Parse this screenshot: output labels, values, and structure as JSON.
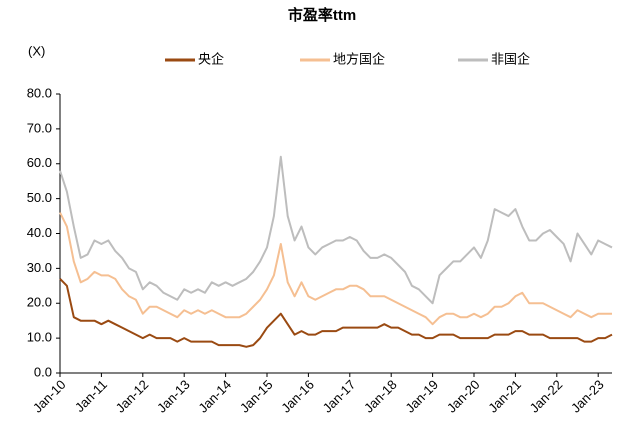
{
  "chart_data": {
    "type": "line",
    "title": "市盈率ttm",
    "y_label": "(X)",
    "categories": [
      "Jan-10",
      null,
      null,
      null,
      null,
      null,
      "Jan-11",
      null,
      null,
      null,
      null,
      null,
      "Jan-12",
      null,
      null,
      null,
      null,
      null,
      "Jan-13",
      null,
      null,
      null,
      null,
      null,
      "Jan-14",
      null,
      null,
      null,
      null,
      null,
      "Jan-15",
      null,
      null,
      null,
      null,
      null,
      "Jan-16",
      null,
      null,
      null,
      null,
      null,
      "Jan-17",
      null,
      null,
      null,
      null,
      null,
      "Jan-18",
      null,
      null,
      null,
      null,
      null,
      "Jan-19",
      null,
      null,
      null,
      null,
      null,
      "Jan-20",
      null,
      null,
      null,
      null,
      null,
      "Jan-21",
      null,
      null,
      null,
      null,
      null,
      "Jan-22",
      null,
      null,
      null,
      null,
      null,
      "Jan-23",
      null,
      null
    ],
    "series": [
      {
        "name": "央企",
        "color": "#9a4a12",
        "values": [
          27,
          25,
          16,
          15,
          15,
          15,
          14,
          15,
          14,
          13,
          12,
          11,
          10,
          11,
          10,
          10,
          10,
          9,
          10,
          9,
          9,
          9,
          9,
          8,
          8,
          8,
          8,
          7.5,
          8,
          10,
          13,
          15,
          17,
          14,
          11,
          12,
          11,
          11,
          12,
          12,
          12,
          13,
          13,
          13,
          13,
          13,
          13,
          14,
          13,
          13,
          12,
          11,
          11,
          10,
          10,
          11,
          11,
          11,
          10,
          10,
          10,
          10,
          10,
          11,
          11,
          11,
          12,
          12,
          11,
          11,
          11,
          10,
          10,
          10,
          10,
          10,
          9,
          9,
          10,
          10,
          11
        ]
      },
      {
        "name": "地方国企",
        "color": "#f5bf92",
        "values": [
          46,
          42,
          32,
          26,
          27,
          29,
          28,
          28,
          27,
          24,
          22,
          21,
          17,
          19,
          19,
          18,
          17,
          16,
          18,
          17,
          18,
          17,
          18,
          17,
          16,
          16,
          16,
          17,
          19,
          21,
          24,
          28,
          37,
          26,
          22,
          26,
          22,
          21,
          22,
          23,
          24,
          24,
          25,
          25,
          24,
          22,
          22,
          22,
          21,
          20,
          19,
          18,
          17,
          16,
          14,
          16,
          17,
          17,
          16,
          16,
          17,
          16,
          17,
          19,
          19,
          20,
          22,
          23,
          20,
          20,
          20,
          19,
          18,
          17,
          16,
          18,
          17,
          16,
          17,
          17,
          17
        ]
      },
      {
        "name": "非国企",
        "color": "#bdbdbd",
        "values": [
          58,
          52,
          42,
          33,
          34,
          38,
          37,
          38,
          35,
          33,
          30,
          29,
          24,
          26,
          25,
          23,
          22,
          21,
          24,
          23,
          24,
          23,
          26,
          25,
          26,
          25,
          26,
          27,
          29,
          32,
          36,
          45,
          62,
          45,
          38,
          42,
          36,
          34,
          36,
          37,
          38,
          38,
          39,
          38,
          35,
          33,
          33,
          34,
          33,
          31,
          29,
          25,
          24,
          22,
          20,
          28,
          30,
          32,
          32,
          34,
          36,
          33,
          38,
          47,
          46,
          45,
          47,
          42,
          38,
          38,
          40,
          41,
          39,
          37,
          32,
          40,
          37,
          34,
          38,
          37,
          36
        ]
      }
    ],
    "ylim": [
      0,
      80
    ],
    "yticks": [
      {
        "value": 0,
        "label": "0.0"
      },
      {
        "value": 10,
        "label": "10.0"
      },
      {
        "value": 20,
        "label": "20.0"
      },
      {
        "value": 30,
        "label": "30.0"
      },
      {
        "value": 40,
        "label": "40.0"
      },
      {
        "value": 50,
        "label": "50.0"
      },
      {
        "value": 60,
        "label": "60.0"
      },
      {
        "value": 70,
        "label": "70.0"
      },
      {
        "value": 80,
        "label": "80.0"
      }
    ],
    "grid": false
  }
}
